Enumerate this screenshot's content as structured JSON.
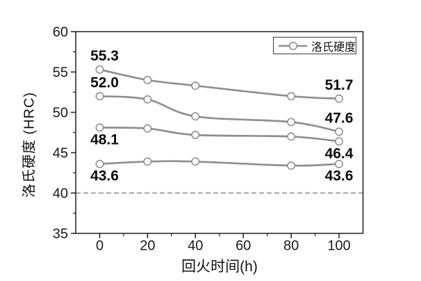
{
  "chart_data": {
    "type": "line",
    "title": "",
    "xlabel": "回火时间(h)",
    "xlabel_text": "回火时间",
    "xlabel_unit": "(h)",
    "ylabel": "洛氏硬度 (HRC)",
    "x": [
      0,
      20,
      40,
      80,
      100
    ],
    "xlim": [
      -10,
      110
    ],
    "ylim": [
      35,
      60
    ],
    "xticks_major": [
      0,
      20,
      40,
      60,
      80,
      100
    ],
    "xticks_minor": [
      10,
      30,
      50,
      70,
      90
    ],
    "yticks_major": [
      35,
      40,
      45,
      50,
      55,
      60
    ],
    "yticks_minor": [
      37.5,
      42.5,
      47.5,
      52.5,
      57.5
    ],
    "grid": false,
    "series": [
      {
        "name": "hardness-line-1",
        "values": [
          55.3,
          54.0,
          53.3,
          52.0,
          51.7
        ],
        "first_label": "55.3",
        "last_label": "51.7",
        "label_side": "above"
      },
      {
        "name": "hardness-line-2",
        "values": [
          52.0,
          51.6,
          49.5,
          48.8,
          47.6
        ],
        "first_label": "52.0",
        "last_label": "47.6",
        "label_side": "above"
      },
      {
        "name": "hardness-line-3",
        "values": [
          48.1,
          48.0,
          47.2,
          47.0,
          46.4
        ],
        "first_label": "48.1",
        "last_label": "46.4",
        "label_side": "below"
      },
      {
        "name": "hardness-line-4",
        "values": [
          43.6,
          43.9,
          43.9,
          43.4,
          43.6
        ],
        "first_label": "43.6",
        "last_label": "43.6",
        "label_side": "below"
      }
    ],
    "reference_line": {
      "y": 40,
      "style": "dashed"
    },
    "legend": {
      "label": "洛氏硬度",
      "position": "top-right"
    },
    "colors": {
      "line": "#8f8f8f",
      "marker_fill": "#ffffff",
      "marker_stroke": "#8a8a8a",
      "dashed": "#b4b4b4",
      "axis": "#1a1a1a",
      "text": "#1a1a1a"
    }
  }
}
